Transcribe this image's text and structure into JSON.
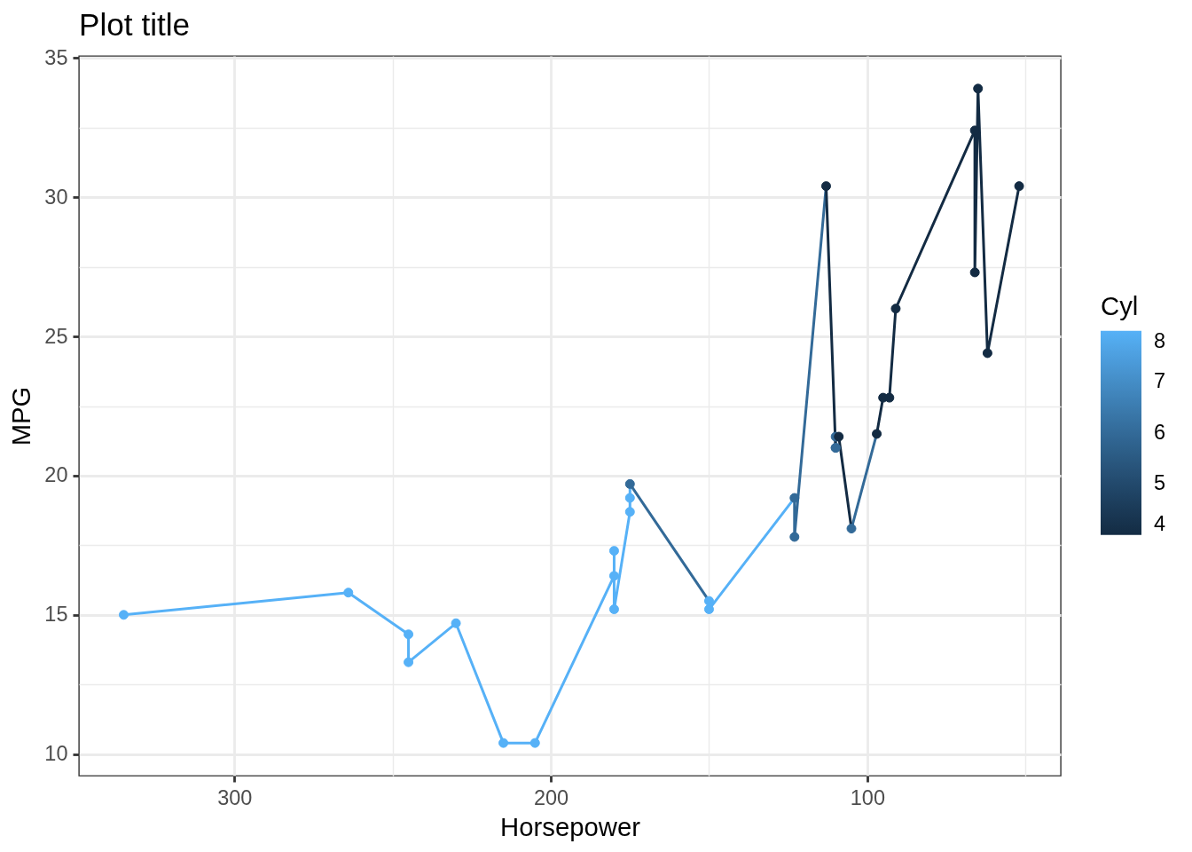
{
  "chart_data": {
    "type": "line",
    "title": "Plot title",
    "xlabel": "Horsepower",
    "ylabel": "MPG",
    "clabel": "Cyl",
    "series": [
      {
        "color": "#56b1f7",
        "marker": "none",
        "x": [
          335,
          264,
          245,
          245,
          230,
          215,
          205,
          180,
          180,
          180,
          175,
          175,
          175,
          null,
          150,
          150,
          123
        ],
        "values": [
          15.0,
          15.8,
          14.3,
          13.3,
          14.7,
          10.4,
          10.4,
          16.4,
          17.3,
          15.2,
          18.7,
          19.2,
          19.7,
          null,
          15.5,
          15.2,
          19.2
        ]
      },
      {
        "color": "#336a98",
        "marker": "none",
        "x": [
          175,
          150,
          null,
          123,
          123,
          113,
          null,
          110,
          110,
          110,
          109,
          null,
          105,
          97
        ],
        "values": [
          19.7,
          15.5,
          null,
          19.2,
          17.8,
          30.4,
          null,
          21.0,
          21.0,
          21.4,
          21.4,
          null,
          18.1,
          21.5
        ]
      },
      {
        "color": "#132b43",
        "marker": "none",
        "x": [
          113,
          110,
          null,
          109,
          105,
          null,
          97,
          95,
          93,
          91,
          66,
          66,
          65,
          62,
          52
        ],
        "values": [
          30.4,
          21.0,
          null,
          21.4,
          18.1,
          null,
          21.5,
          22.8,
          22.8,
          26.0,
          32.4,
          27.3,
          33.9,
          24.4,
          30.4
        ]
      },
      {
        "type": "scatter",
        "marker": "circle",
        "x": [
          335,
          264,
          245,
          245,
          230,
          215,
          205,
          180,
          180,
          180,
          175,
          175,
          175,
          150,
          150,
          123,
          123,
          113,
          110,
          110,
          110,
          109,
          105,
          97,
          95,
          93,
          91,
          66,
          66,
          65,
          62,
          52
        ],
        "values": [
          15.0,
          15.8,
          14.3,
          13.3,
          14.7,
          10.4,
          10.4,
          16.4,
          17.3,
          15.2,
          18.7,
          19.2,
          19.7,
          15.5,
          15.2,
          19.2,
          17.8,
          30.4,
          21.0,
          21.0,
          21.4,
          21.4,
          18.1,
          21.5,
          22.8,
          22.8,
          26.0,
          32.4,
          27.3,
          33.9,
          24.4,
          30.4
        ],
        "cvalues": [
          8,
          8,
          8,
          8,
          8,
          8,
          8,
          8,
          8,
          8,
          8,
          8,
          6,
          8,
          8,
          6,
          6,
          4,
          6,
          6,
          6,
          4,
          6,
          4,
          4,
          4,
          4,
          4,
          4,
          4,
          4,
          4
        ],
        "colors": [
          "#56b1f7",
          "#56b1f7",
          "#56b1f7",
          "#56b1f7",
          "#56b1f7",
          "#56b1f7",
          "#56b1f7",
          "#56b1f7",
          "#56b1f7",
          "#56b1f7",
          "#56b1f7",
          "#56b1f7",
          "#336a98",
          "#56b1f7",
          "#56b1f7",
          "#336a98",
          "#336a98",
          "#132b43",
          "#336a98",
          "#336a98",
          "#336a98",
          "#132b43",
          "#336a98",
          "#132b43",
          "#132b43",
          "#132b43",
          "#132b43",
          "#132b43",
          "#132b43",
          "#132b43",
          "#132b43",
          "#132b43"
        ]
      }
    ],
    "clim": [
      4,
      8
    ],
    "cticks": [
      4,
      5,
      6,
      7,
      8
    ],
    "xlim": [
      349.15,
      38.85
    ],
    "xticks": [
      300,
      {
        "value": 250,
        "label": null
      },
      200,
      {
        "value": 150,
        "label": null
      },
      100,
      {
        "value": 50,
        "label": null
      }
    ],
    "ylim": [
      9.225,
      35.075
    ],
    "yticks": [
      10,
      {
        "value": 12.5,
        "label": null
      },
      15,
      {
        "value": 17.5,
        "label": null
      },
      20,
      {
        "value": 22.5,
        "label": null
      },
      25,
      {
        "value": 27.5,
        "label": null
      },
      30,
      {
        "value": 32.5,
        "label": null
      },
      35
    ],
    "grid": true,
    "line_style": "solid"
  }
}
